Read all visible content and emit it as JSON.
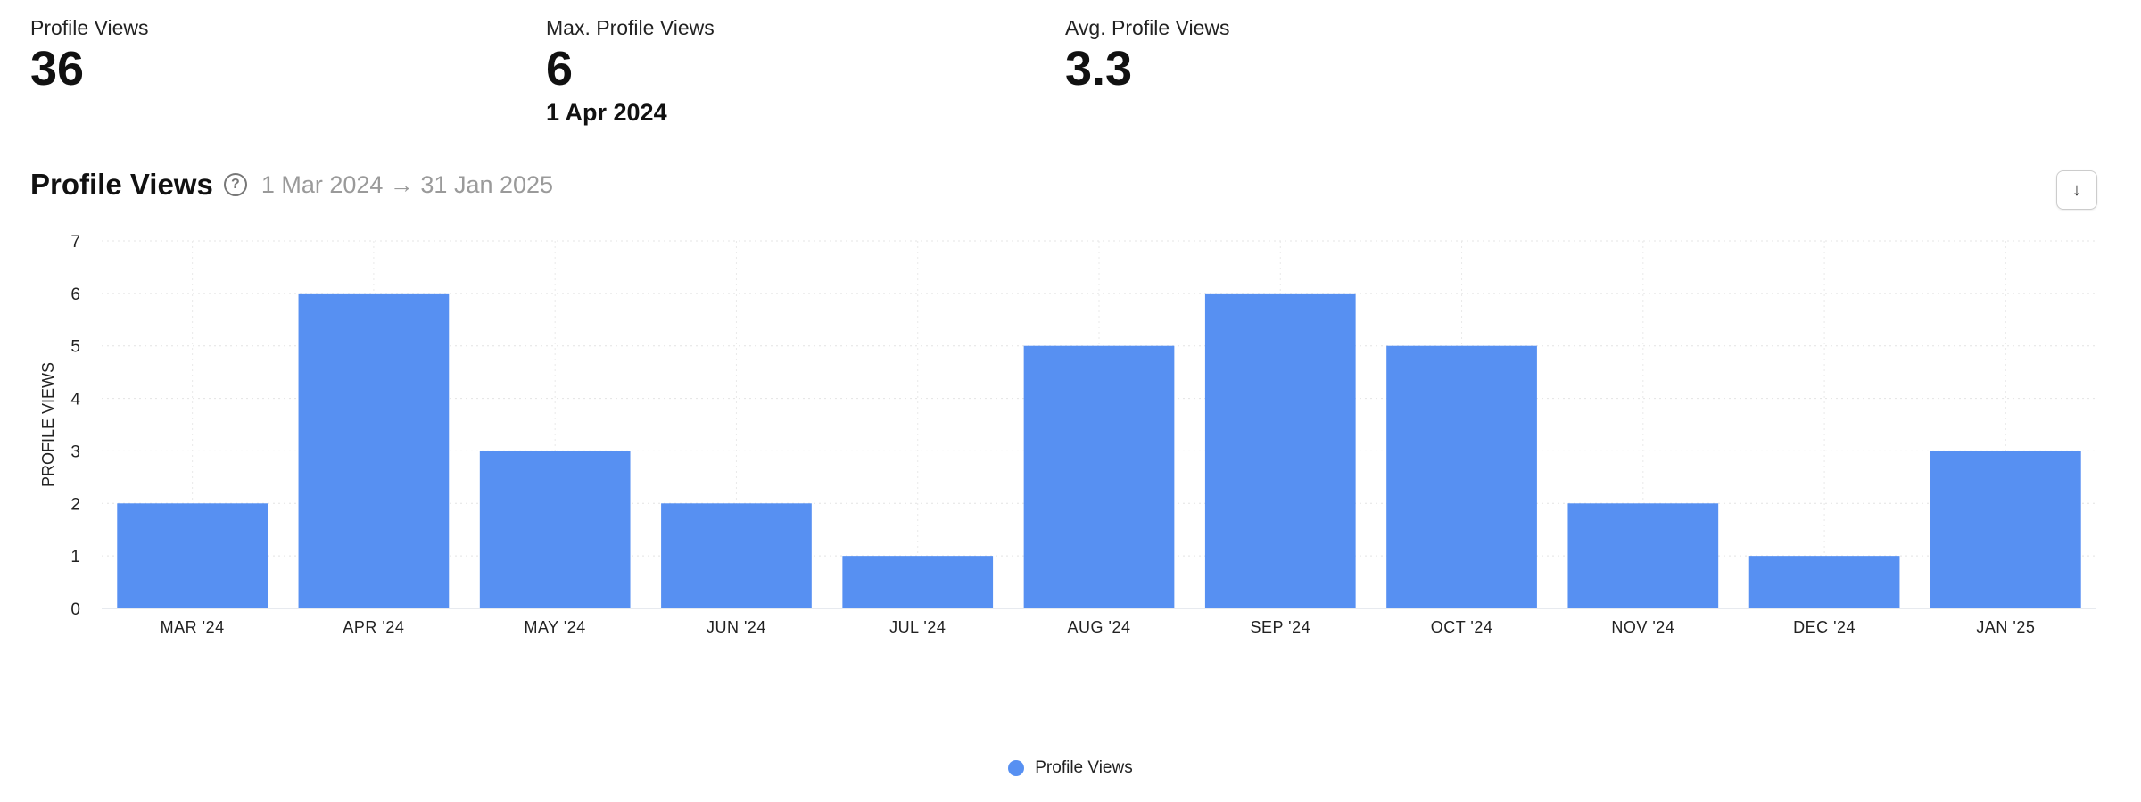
{
  "kpis": [
    {
      "label": "Profile Views",
      "value": "36"
    },
    {
      "label": "Max. Profile Views",
      "value": "6",
      "sub": "1 Apr 2024"
    },
    {
      "label": "Avg. Profile Views",
      "value": "3.3"
    }
  ],
  "section": {
    "title": "Profile Views",
    "help_icon": "question-circle-icon",
    "help_glyph": "?",
    "date_range": "1 Mar 2024 → 31 Jan 2025",
    "download_icon": "arrow-down-icon",
    "download_glyph": "↓"
  },
  "chart_data": {
    "type": "bar",
    "title": "",
    "xlabel": "",
    "ylabel": "PROFILE VIEWS",
    "categories": [
      "MAR '24",
      "APR '24",
      "MAY '24",
      "JUN '24",
      "JUL '24",
      "AUG '24",
      "SEP '24",
      "OCT '24",
      "NOV '24",
      "DEC '24",
      "JAN '25"
    ],
    "series": [
      {
        "name": "Profile Views",
        "values": [
          2,
          6,
          3,
          2,
          1,
          5,
          6,
          5,
          2,
          1,
          3
        ],
        "color": "#5790f2"
      }
    ],
    "ylim": [
      0,
      7
    ],
    "yticks": [
      0,
      1,
      2,
      3,
      4,
      5,
      6,
      7
    ],
    "grid": true,
    "legend": "bottom-center"
  }
}
